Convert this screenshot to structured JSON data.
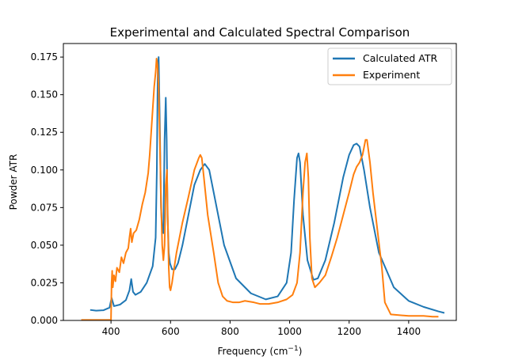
{
  "chart_data": {
    "type": "line",
    "title": "Experimental and Calculated Spectral Comparison",
    "xlabel_main": "Frequency (cm",
    "xlabel_sup": "−1",
    "xlabel_close": ")",
    "ylabel": "Powder ATR",
    "xlim": [
      240,
      1560
    ],
    "ylim": [
      0,
      0.184
    ],
    "xticks": [
      400,
      600,
      800,
      1000,
      1200,
      1400
    ],
    "xtick_labels": [
      "400",
      "600",
      "800",
      "1000",
      "1200",
      "1400"
    ],
    "yticks": [
      0,
      0.025,
      0.05,
      0.075,
      0.1,
      0.125,
      0.15,
      0.175
    ],
    "ytick_labels": [
      "0.000",
      "0.025",
      "0.050",
      "0.075",
      "0.100",
      "0.125",
      "0.150",
      "0.175"
    ],
    "grid": false,
    "legend_position": "upper right",
    "series": [
      {
        "name": "Calculated ATR",
        "color": "#1f77b4",
        "x": [
          330,
          350,
          375,
          395,
          402,
          410,
          430,
          450,
          462,
          468,
          474,
          482,
          500,
          520,
          540,
          550,
          554,
          557,
          560,
          564,
          568,
          572,
          576,
          580,
          584,
          587,
          590,
          594,
          598,
          605,
          615,
          625,
          640,
          660,
          680,
          700,
          715,
          730,
          750,
          780,
          820,
          870,
          920,
          960,
          990,
          1005,
          1015,
          1025,
          1030,
          1035,
          1045,
          1060,
          1080,
          1095,
          1120,
          1150,
          1180,
          1200,
          1215,
          1225,
          1235,
          1250,
          1270,
          1300,
          1350,
          1400,
          1450,
          1500,
          1520
        ],
        "y": [
          0.007,
          0.0065,
          0.0068,
          0.0085,
          0.015,
          0.0095,
          0.0105,
          0.0135,
          0.02,
          0.0275,
          0.019,
          0.017,
          0.019,
          0.025,
          0.036,
          0.055,
          0.1,
          0.165,
          0.175,
          0.13,
          0.075,
          0.06,
          0.058,
          0.12,
          0.148,
          0.12,
          0.07,
          0.045,
          0.038,
          0.034,
          0.034,
          0.038,
          0.05,
          0.07,
          0.09,
          0.1,
          0.104,
          0.1,
          0.08,
          0.05,
          0.028,
          0.018,
          0.014,
          0.016,
          0.025,
          0.045,
          0.08,
          0.108,
          0.111,
          0.105,
          0.07,
          0.04,
          0.027,
          0.028,
          0.04,
          0.065,
          0.095,
          0.11,
          0.1165,
          0.1175,
          0.1155,
          0.1,
          0.075,
          0.045,
          0.022,
          0.013,
          0.009,
          0.006,
          0.005
        ]
      },
      {
        "name": "Experiment",
        "color": "#ff7f0e",
        "x": [
          300,
          330,
          360,
          395,
          400,
          402,
          404,
          406,
          410,
          415,
          420,
          428,
          435,
          442,
          450,
          458,
          462,
          466,
          470,
          476,
          485,
          495,
          505,
          515,
          525,
          530,
          535,
          540,
          545,
          550,
          553,
          556,
          560,
          564,
          568,
          572,
          576,
          580,
          584,
          588,
          591,
          594,
          597,
          600,
          605,
          610,
          620,
          640,
          660,
          680,
          695,
          700,
          705,
          712,
          725,
          745,
          760,
          775,
          790,
          810,
          830,
          850,
          880,
          900,
          930,
          960,
          990,
          1010,
          1025,
          1035,
          1045,
          1052,
          1058,
          1063,
          1068,
          1075,
          1085,
          1100,
          1120,
          1140,
          1160,
          1180,
          1200,
          1215,
          1225,
          1235,
          1245,
          1250,
          1255,
          1260,
          1270,
          1280,
          1295,
          1310,
          1320,
          1340,
          1400,
          1450,
          1480,
          1500
        ],
        "y": [
          0.0003,
          0.0003,
          0.0003,
          0.0003,
          0.0005,
          0.025,
          0.033,
          0.022,
          0.03,
          0.026,
          0.035,
          0.032,
          0.042,
          0.038,
          0.045,
          0.048,
          0.055,
          0.061,
          0.052,
          0.058,
          0.06,
          0.067,
          0.077,
          0.085,
          0.098,
          0.11,
          0.125,
          0.14,
          0.155,
          0.165,
          0.174,
          0.17,
          0.155,
          0.12,
          0.08,
          0.05,
          0.04,
          0.05,
          0.09,
          0.1,
          0.065,
          0.035,
          0.022,
          0.02,
          0.025,
          0.032,
          0.045,
          0.065,
          0.082,
          0.1,
          0.108,
          0.11,
          0.108,
          0.095,
          0.07,
          0.045,
          0.025,
          0.016,
          0.013,
          0.012,
          0.012,
          0.013,
          0.012,
          0.011,
          0.011,
          0.012,
          0.014,
          0.017,
          0.025,
          0.045,
          0.085,
          0.105,
          0.111,
          0.095,
          0.055,
          0.028,
          0.022,
          0.025,
          0.03,
          0.042,
          0.055,
          0.07,
          0.085,
          0.097,
          0.102,
          0.105,
          0.11,
          0.115,
          0.12,
          0.12,
          0.105,
          0.085,
          0.06,
          0.035,
          0.012,
          0.004,
          0.003,
          0.003,
          0.0025,
          0.0025
        ]
      }
    ]
  }
}
